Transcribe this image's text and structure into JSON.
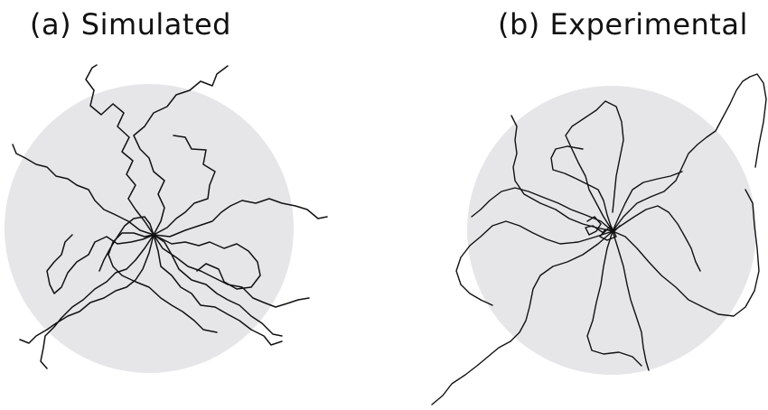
{
  "panels": [
    {
      "label": "(a) Simulated"
    },
    {
      "label": "(b) Experimental"
    }
  ],
  "colors": {
    "disc": "#e6e6e9",
    "line": "#111111",
    "background": "#ffffff"
  }
}
